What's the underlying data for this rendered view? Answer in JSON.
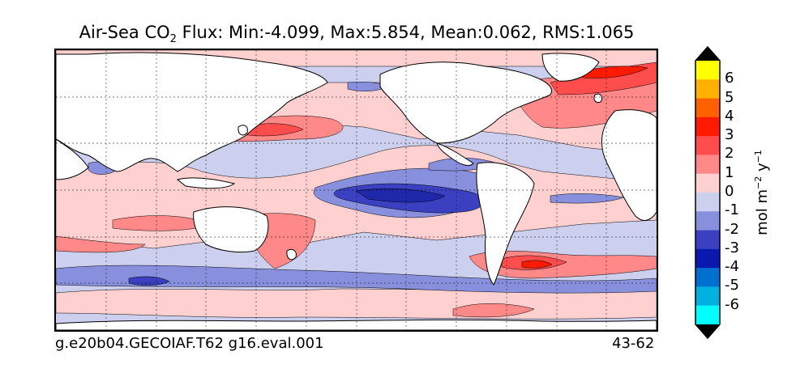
{
  "title": {
    "prefix": "Air-Sea CO",
    "subscript": "2",
    "suffix": " Flux: Min:-4.099, Max:5.854, Mean:0.062, RMS:1.065"
  },
  "footer": {
    "left": "g.e20b04.GECOIAF.T62 g16.eval.001",
    "right": "43-62"
  },
  "colorbar": {
    "labels": [
      "6",
      "5",
      "4",
      "3",
      "2",
      "1",
      "0",
      "-1",
      "-2",
      "-3",
      "-4",
      "-5",
      "-6"
    ],
    "colors": [
      "#ffff00",
      "#ffb000",
      "#ff6000",
      "#ff1a00",
      "#ff4d4d",
      "#ff8888",
      "#ffd0d0",
      "#ccd0ee",
      "#8890dd",
      "#3a40c0",
      "#0a18b0",
      "#0070d0",
      "#00b0e0",
      "#00ffff"
    ],
    "unit_prefix": "mol m",
    "unit_exp1": "−2",
    "unit_mid": " y",
    "unit_exp2": "−1"
  },
  "colors": {
    "land": "#ffffff",
    "ocean_background": "#ccd0ee",
    "positive_light": "#ffd0d0",
    "positive_mid": "#ff8888",
    "positive_strong": "#ff4d4d",
    "positive_max": "#ff1a00",
    "negative_light": "#ccd0ee",
    "negative_mid": "#8890dd",
    "negative_strong": "#3a40c0",
    "negative_max": "#1e28a8"
  }
}
